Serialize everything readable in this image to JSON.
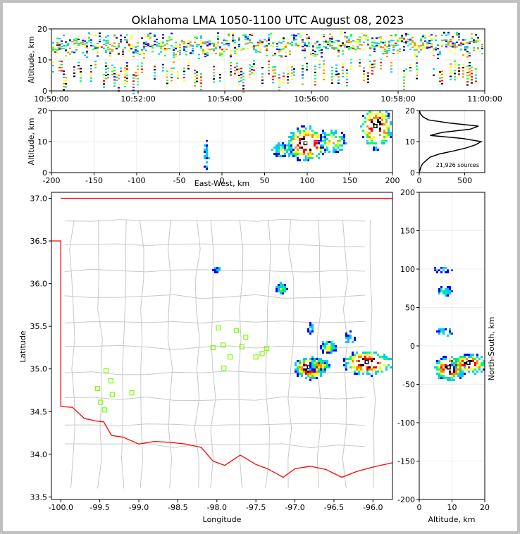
{
  "title": "Oklahoma LMA 1050-1100 UTC August 08, 2023",
  "colors": {
    "background": "#c0c0c0",
    "state_border": "#ff0000",
    "county_lines": "#c8c8c8",
    "station_marker": "#7cfc00",
    "density_ramp": [
      "#0000ff",
      "#00c8ff",
      "#00ff64",
      "#ffff00",
      "#ff8c00",
      "#ff0000",
      "#000000",
      "#ffffff"
    ]
  },
  "chart_data": [
    {
      "id": "time_height",
      "type": "heatmap",
      "xlabel": "",
      "ylabel": "Altitude, km",
      "xticks": [
        "10:50:00",
        "10:52:00",
        "10:54:00",
        "10:56:00",
        "10:58:00",
        "11:00:00"
      ],
      "xlim_minutes": [
        0,
        10
      ],
      "yticks": [
        0,
        10,
        20
      ],
      "ylim": [
        0,
        20
      ]
    },
    {
      "id": "ew_altitude",
      "type": "heatmap",
      "xlabel": "East-West, km",
      "ylabel": "Altitude, km",
      "xticks": [
        -200,
        -150,
        -100,
        -50,
        0,
        50,
        100,
        150,
        200
      ],
      "xlim": [
        -200,
        200
      ],
      "yticks": [
        0,
        10,
        20
      ],
      "ylim": [
        0,
        20
      ],
      "clusters": [
        {
          "x": 98,
          "y": 9.5,
          "rx": 16,
          "ry": 3.5,
          "weight": 1.0
        },
        {
          "x": 128,
          "y": 10.5,
          "rx": 10,
          "ry": 2.5,
          "weight": 0.55
        },
        {
          "x": 180,
          "y": 15,
          "rx": 12,
          "ry": 4.5,
          "weight": 0.95
        },
        {
          "x": 70,
          "y": 7.5,
          "rx": 8,
          "ry": 1.5,
          "weight": 0.35
        },
        {
          "x": -20,
          "y": 5,
          "rx": 2,
          "ry": 3.5,
          "weight": 0.15
        }
      ]
    },
    {
      "id": "altitude_histogram",
      "type": "line",
      "xticks": [
        0,
        500
      ],
      "xlim": [
        0,
        720
      ],
      "yticks": [
        0,
        10,
        20
      ],
      "ylim": [
        0,
        20
      ],
      "annotation": "21,926 sources",
      "altitude": [
        0,
        1,
        2,
        3,
        4,
        5,
        6,
        7,
        8,
        9,
        10,
        11,
        12,
        13,
        14,
        15,
        16,
        17,
        18,
        19,
        20
      ],
      "count": [
        0,
        10,
        20,
        40,
        80,
        120,
        220,
        380,
        520,
        620,
        680,
        480,
        120,
        260,
        560,
        650,
        330,
        100,
        40,
        12,
        2
      ]
    },
    {
      "id": "plan_view",
      "type": "scatter",
      "xlabel": "Longitude",
      "ylabel": "Latitude",
      "xticks": [
        -100.0,
        -99.5,
        -99.0,
        -98.5,
        -98.0,
        -97.5,
        -97.0,
        -96.5,
        -96.0
      ],
      "xlim": [
        -100.12,
        -95.75
      ],
      "yticks": [
        33.5,
        34.0,
        34.5,
        35.0,
        35.5,
        36.0,
        36.5,
        37.0
      ],
      "ylim": [
        33.47,
        37.07
      ],
      "stations_lon_lat": [
        [
          -99.42,
          34.98
        ],
        [
          -99.36,
          34.86
        ],
        [
          -99.53,
          34.77
        ],
        [
          -99.34,
          34.7
        ],
        [
          -99.49,
          34.61
        ],
        [
          -99.44,
          34.52
        ],
        [
          -99.09,
          34.72
        ],
        [
          -98.05,
          35.25
        ],
        [
          -97.98,
          35.48
        ],
        [
          -97.92,
          35.28
        ],
        [
          -97.75,
          35.45
        ],
        [
          -97.68,
          35.26
        ],
        [
          -97.63,
          35.37
        ],
        [
          -97.5,
          35.14
        ],
        [
          -97.42,
          35.18
        ],
        [
          -97.36,
          35.24
        ],
        [
          -97.83,
          35.14
        ],
        [
          -97.91,
          35.01
        ]
      ],
      "clusters": [
        {
          "lon": -96.82,
          "lat": 35.02,
          "rx": 0.13,
          "ry": 0.08,
          "weight": 1.0
        },
        {
          "lon": -96.7,
          "lat": 35.06,
          "rx": 0.08,
          "ry": 0.05,
          "weight": 0.6
        },
        {
          "lon": -96.08,
          "lat": 35.08,
          "rx": 0.2,
          "ry": 0.09,
          "weight": 1.0
        },
        {
          "lon": -96.58,
          "lat": 35.27,
          "rx": 0.06,
          "ry": 0.05,
          "weight": 0.45
        },
        {
          "lon": -97.18,
          "lat": 35.95,
          "rx": 0.05,
          "ry": 0.04,
          "weight": 0.3
        },
        {
          "lon": -98.02,
          "lat": 36.18,
          "rx": 0.03,
          "ry": 0.02,
          "weight": 0.15
        },
        {
          "lon": -96.82,
          "lat": 35.48,
          "rx": 0.02,
          "ry": 0.05,
          "weight": 0.12
        },
        {
          "lon": -96.3,
          "lat": 35.38,
          "rx": 0.05,
          "ry": 0.05,
          "weight": 0.12
        }
      ]
    },
    {
      "id": "ns_altitude",
      "type": "heatmap",
      "xlabel": "Altitude, km",
      "ylabel": "North-South, km",
      "xticks": [
        0,
        10,
        20
      ],
      "xlim": [
        0,
        20
      ],
      "yticks": [
        200,
        150,
        100,
        50,
        0,
        -50,
        -100,
        -150,
        -200
      ],
      "ylim": [
        -200,
        200
      ],
      "clusters": [
        {
          "x": 9,
          "y": -28,
          "rx": 3,
          "ry": 10,
          "weight": 1.0
        },
        {
          "x": 15,
          "y": -22,
          "rx": 3.5,
          "ry": 8,
          "weight": 0.9
        },
        {
          "x": 7.5,
          "y": 20,
          "rx": 1.5,
          "ry": 3,
          "weight": 0.2
        },
        {
          "x": 7.5,
          "y": 72,
          "rx": 1.5,
          "ry": 4,
          "weight": 0.25
        },
        {
          "x": 7,
          "y": 100,
          "rx": 2,
          "ry": 2,
          "weight": 0.12
        }
      ]
    }
  ]
}
